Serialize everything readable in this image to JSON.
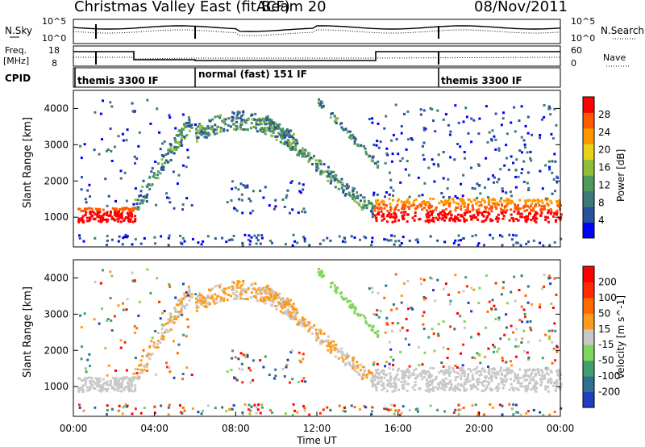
{
  "header": {
    "title": "Christmas Valley East (fitACF)",
    "beam": "Beam 20",
    "date": "08/Nov/2011"
  },
  "sky_panel": {
    "label": "N.Sky",
    "ticks_left": [
      "10^5",
      "10^0"
    ],
    "ticks_right": [
      "10^5",
      "10^0"
    ],
    "right_label": "N.Search"
  },
  "freq_panel": {
    "label_line1": "Freq.",
    "label_line2": "[MHz]",
    "ticks_left": [
      "18",
      "8"
    ],
    "ticks_right": [
      "60",
      "0"
    ],
    "right_label": "Nave"
  },
  "cpid_panel": {
    "label": "CPID",
    "segments": [
      "themis 3300 IF",
      "normal (fast) 151 IF",
      "themis 3300 IF"
    ]
  },
  "chart_data": [
    {
      "type": "heatmap",
      "name": "power",
      "xlabel": "Time UT",
      "ylabel": "Slant Range [km]",
      "yticks": [
        "4000",
        "3000",
        "2000",
        "1000"
      ],
      "colorbar_label": "Power [dB]",
      "colorbar_ticks": [
        "28",
        "24",
        "20",
        "16",
        "12",
        "8",
        "4"
      ],
      "colors": [
        "#0000ff",
        "#2a50a0",
        "#3c7a78",
        "#4f9a5a",
        "#8fbf3a",
        "#e6d21a",
        "#ff9800",
        "#ff5a00",
        "#ff0000"
      ],
      "ylim": [
        180,
        4500
      ],
      "xlim": [
        0,
        24
      ]
    },
    {
      "type": "heatmap",
      "name": "velocity",
      "xlabel": "Time UT",
      "ylabel": "Slant Range [km]",
      "yticks": [
        "4000",
        "3000",
        "2000",
        "1000"
      ],
      "colorbar_label": "Velocity [m s^-1]",
      "colorbar_ticks": [
        "200",
        "100",
        "50",
        "15",
        "-15",
        "-50",
        "-100",
        "-200"
      ],
      "colors": [
        "#1f3fbf",
        "#2f6f8f",
        "#3f9f6f",
        "#7ed65a",
        "#c8c8c8",
        "#ff9a1a",
        "#ff6a00",
        "#ff2a00",
        "#ff0000"
      ],
      "ylim": [
        180,
        4500
      ],
      "xlim": [
        0,
        24
      ]
    }
  ],
  "time_axis": {
    "ticks": [
      "00:00",
      "04:00",
      "08:00",
      "12:00",
      "16:00",
      "20:00",
      "00:00"
    ],
    "label": "Time UT"
  }
}
